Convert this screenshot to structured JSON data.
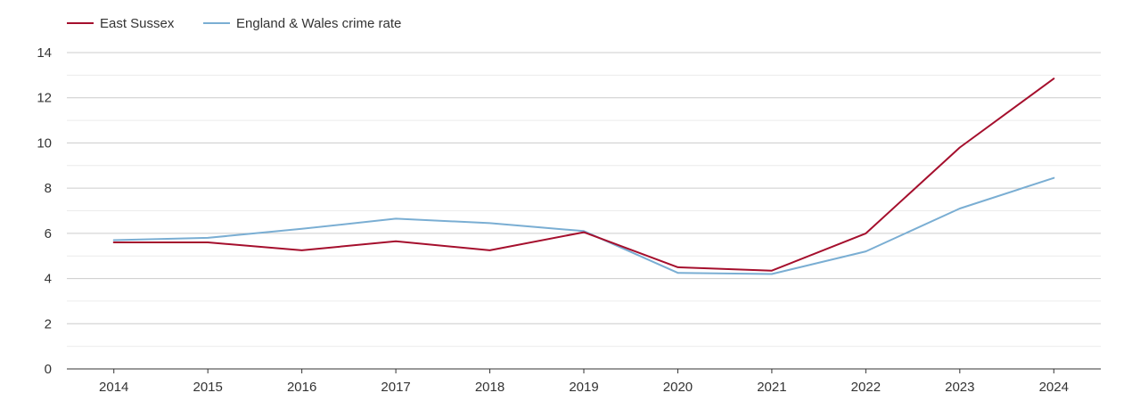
{
  "chart_data": {
    "type": "line",
    "title": "",
    "xlabel": "",
    "ylabel": "",
    "categories": [
      "2014",
      "2015",
      "2016",
      "2017",
      "2018",
      "2019",
      "2020",
      "2021",
      "2022",
      "2023",
      "2024"
    ],
    "ylim": [
      0,
      14
    ],
    "yticks": [
      "0",
      "2",
      "4",
      "6",
      "8",
      "10",
      "12",
      "14"
    ],
    "grid": true,
    "legend_position": "top-left",
    "series": [
      {
        "name": "East Sussex",
        "color": "#a50f2d",
        "values": [
          5.6,
          5.6,
          5.25,
          5.65,
          5.25,
          6.05,
          4.5,
          4.35,
          6.0,
          9.8,
          12.85
        ]
      },
      {
        "name": "England & Wales crime rate",
        "color": "#7aaed3",
        "values": [
          5.7,
          5.8,
          6.2,
          6.65,
          6.45,
          6.1,
          4.25,
          4.2,
          5.2,
          7.1,
          8.45
        ]
      }
    ]
  }
}
